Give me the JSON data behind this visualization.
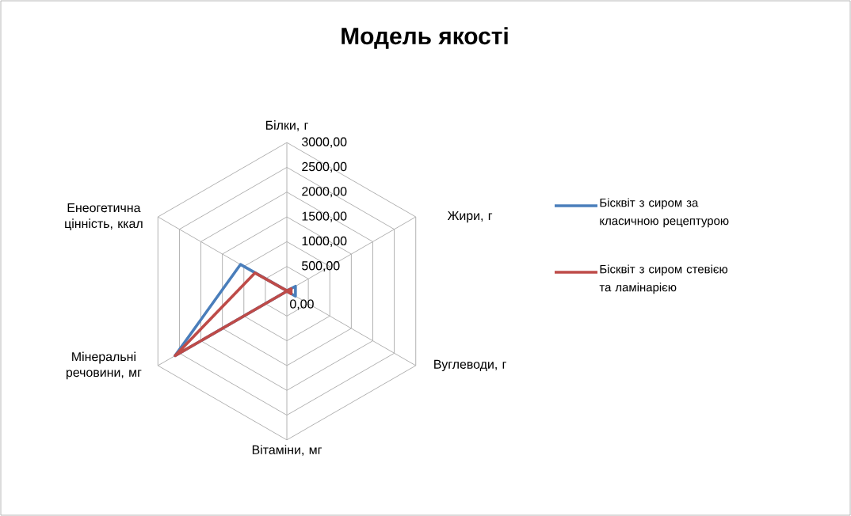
{
  "chart_data": {
    "type": "radar",
    "title": "Модель якості",
    "categories": [
      "Білки, г",
      "Жири, г",
      "Вуглеводи, г",
      "Вітаміни, мг",
      "Мінеральні речовини, мг",
      "Енеогетична цінність, ккал"
    ],
    "ylim": [
      0,
      3000
    ],
    "yticks": [
      {
        "value": 0,
        "label": "0,00"
      },
      {
        "value": 500,
        "label": "500,00"
      },
      {
        "value": 1000,
        "label": "1000,00"
      },
      {
        "value": 1500,
        "label": "1500,00"
      },
      {
        "value": 2000,
        "label": "2000,00"
      },
      {
        "value": 2500,
        "label": "2500,00"
      },
      {
        "value": 3000,
        "label": "3000,00"
      }
    ],
    "grid": true,
    "legend": "right",
    "marker": "none",
    "series": [
      {
        "name": "Бісквіт з сиром за класичною рецептурою",
        "color": "#4a7ebb",
        "values": [
          10,
          200,
          200,
          0,
          2600,
          1080
        ]
      },
      {
        "name": "Бісквіт з сиром стевією та ламінарією",
        "color": "#be4b48",
        "values": [
          10,
          100,
          100,
          0,
          2600,
          740
        ]
      }
    ]
  }
}
